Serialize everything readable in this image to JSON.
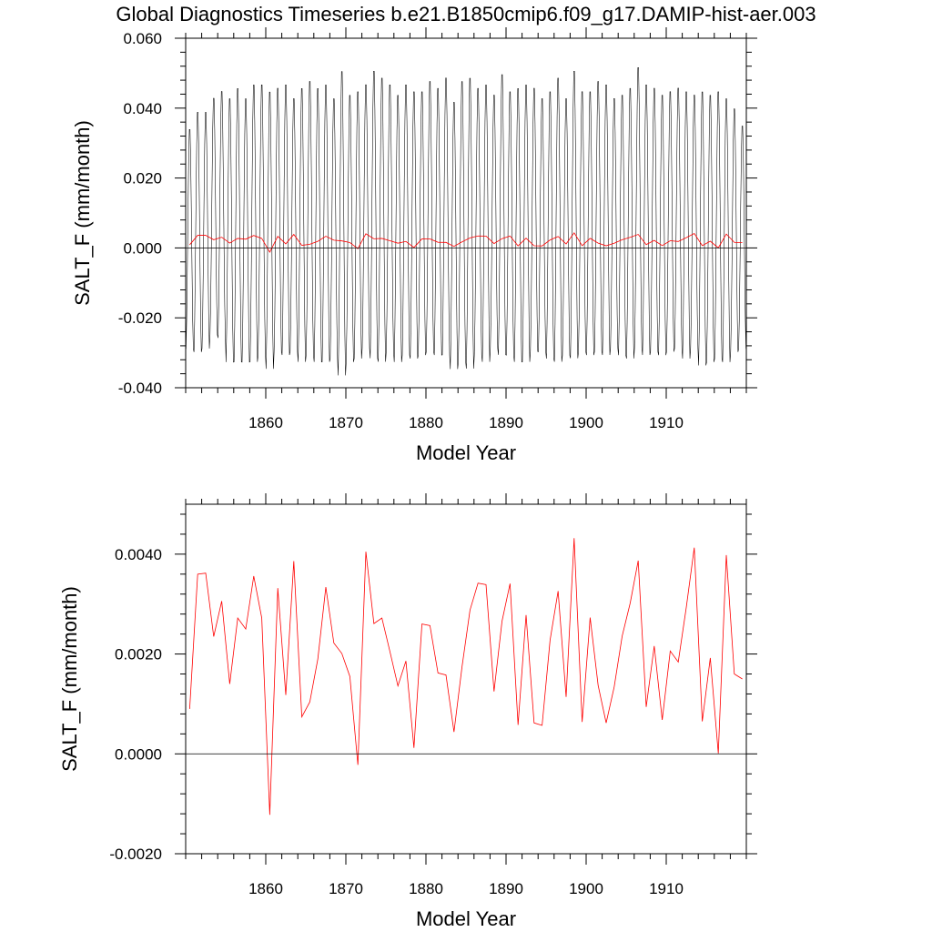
{
  "figure": {
    "title": "Global Diagnostics Timeseries b.e21.B1850cmip6.f09_g17.DAMIP-hist-aer.003"
  },
  "colors": {
    "monthly_series": "#000000",
    "annual_series": "#ff0000",
    "zero_line": "#000000",
    "background": "#ffffff"
  },
  "chart_data": [
    {
      "type": "line",
      "title": "Global Diagnostics Timeseries b.e21.B1850cmip6.f09_g17.DAMIP-hist-aer.003",
      "xlabel": "Model Year",
      "ylabel": "SALT_F (mm/month)",
      "xlim": [
        1850,
        1920
      ],
      "ylim": [
        -0.04,
        0.06
      ],
      "xticks": [
        1860,
        1870,
        1880,
        1890,
        1900,
        1910
      ],
      "xtick_labels": [
        "1860",
        "1870",
        "1880",
        "1890",
        "1900",
        "1910"
      ],
      "yticks": [
        -0.04,
        -0.02,
        0.0,
        0.02,
        0.04,
        0.06
      ],
      "ytick_labels": [
        "-0.040",
        "-0.020",
        "0.000",
        "0.020",
        "0.040",
        "0.060"
      ],
      "zero_line": true,
      "grid": false,
      "series": [
        {
          "color": "#000000",
          "resolution": "monthly",
          "annual_max": [
            0.035,
            0.04,
            0.04,
            0.044,
            0.046,
            0.044,
            0.047,
            0.044,
            0.048,
            0.048,
            0.046,
            0.047,
            0.048,
            0.044,
            0.047,
            0.049,
            0.047,
            0.048,
            0.044,
            0.052,
            0.045,
            0.046,
            0.048,
            0.052,
            0.05,
            0.048,
            0.045,
            0.048,
            0.046,
            0.046,
            0.049,
            0.047,
            0.05,
            0.043,
            0.049,
            0.05,
            0.047,
            0.048,
            0.045,
            0.051,
            0.046,
            0.047,
            0.048,
            0.047,
            0.044,
            0.046,
            0.05,
            0.044,
            0.052,
            0.046,
            0.046,
            0.049,
            0.048,
            0.044,
            0.045,
            0.047,
            0.053,
            0.048,
            0.047,
            0.045,
            0.046,
            0.047,
            0.046,
            0.045,
            0.046,
            0.045,
            0.046,
            0.044,
            0.041,
            0.036
          ],
          "annual_min": [
            -0.03,
            -0.031,
            -0.03,
            -0.026,
            -0.027,
            -0.034,
            -0.034,
            -0.034,
            -0.034,
            -0.032,
            -0.036,
            -0.031,
            -0.032,
            -0.031,
            -0.034,
            -0.032,
            -0.034,
            -0.034,
            -0.033,
            -0.038,
            -0.034,
            -0.033,
            -0.03,
            -0.033,
            -0.034,
            -0.031,
            -0.034,
            -0.032,
            -0.033,
            -0.032,
            -0.031,
            -0.032,
            -0.032,
            -0.036,
            -0.034,
            -0.036,
            -0.032,
            -0.034,
            -0.03,
            -0.032,
            -0.032,
            -0.034,
            -0.034,
            -0.031,
            -0.031,
            -0.033,
            -0.034,
            -0.032,
            -0.033,
            -0.031,
            -0.032,
            -0.031,
            -0.032,
            -0.03,
            -0.032,
            -0.033,
            -0.03,
            -0.032,
            -0.031,
            -0.032,
            -0.031,
            -0.03,
            -0.033,
            -0.03,
            -0.035,
            -0.034,
            -0.033,
            -0.034,
            -0.031,
            -0.03
          ]
        },
        {
          "color": "#ff0000",
          "resolution": "annual",
          "x": [
            1850.5,
            1851.5,
            1852.5,
            1853.5,
            1854.5,
            1855.5,
            1856.5,
            1857.5,
            1858.5,
            1859.5,
            1860.5,
            1861.5,
            1862.5,
            1863.5,
            1864.5,
            1865.5,
            1866.5,
            1867.5,
            1868.5,
            1869.5,
            1870.5,
            1871.5,
            1872.5,
            1873.5,
            1874.5,
            1875.5,
            1876.5,
            1877.5,
            1878.5,
            1879.5,
            1880.5,
            1881.5,
            1882.5,
            1883.5,
            1884.5,
            1885.5,
            1886.5,
            1887.5,
            1888.5,
            1889.5,
            1890.5,
            1891.5,
            1892.5,
            1893.5,
            1894.5,
            1895.5,
            1896.5,
            1897.5,
            1898.5,
            1899.5,
            1900.5,
            1901.5,
            1902.5,
            1903.5,
            1904.5,
            1905.5,
            1906.5,
            1907.5,
            1908.5,
            1909.5,
            1910.5,
            1911.5,
            1912.5,
            1913.5,
            1914.5,
            1915.5,
            1916.5,
            1917.5,
            1918.5,
            1919.5
          ],
          "values": [
            0.0009,
            0.0036,
            0.00362,
            0.00235,
            0.00306,
            0.0014,
            0.00272,
            0.0025,
            0.00356,
            0.00272,
            -0.00122,
            0.00332,
            0.00118,
            0.00386,
            0.00074,
            0.00104,
            0.0019,
            0.00334,
            0.00222,
            0.00201,
            0.00155,
            -0.00022,
            0.00405,
            0.00261,
            0.00272,
            0.00205,
            0.00136,
            0.00186,
            0.00012,
            0.0026,
            0.00257,
            0.00162,
            0.00158,
            0.00044,
            0.00174,
            0.00288,
            0.00342,
            0.00339,
            0.00125,
            0.00266,
            0.00341,
            0.00058,
            0.00278,
            0.00062,
            0.00057,
            0.00228,
            0.00326,
            0.00114,
            0.00432,
            0.00064,
            0.00273,
            0.00137,
            0.00062,
            0.00134,
            0.00236,
            0.00302,
            0.00387,
            0.00094,
            0.00216,
            0.00068,
            0.00206,
            0.00184,
            0.00293,
            0.00413,
            0.00065,
            0.00192,
            1e-05,
            0.00398,
            0.0016,
            0.0015
          ]
        }
      ]
    },
    {
      "type": "line",
      "xlabel": "Model Year",
      "ylabel": "SALT_F (mm/month)",
      "xlim": [
        1850,
        1920
      ],
      "ylim": [
        -0.002,
        0.005
      ],
      "xticks": [
        1860,
        1870,
        1880,
        1890,
        1900,
        1910
      ],
      "xtick_labels": [
        "1860",
        "1870",
        "1880",
        "1890",
        "1900",
        "1910"
      ],
      "yticks": [
        -0.002,
        0.0,
        0.002,
        0.004
      ],
      "ytick_labels": [
        "-0.0020",
        "0.0000",
        "0.0020",
        "0.0040"
      ],
      "zero_line": true,
      "grid": false,
      "series": [
        {
          "color": "#ff0000",
          "resolution": "annual",
          "x": [
            1850.5,
            1851.5,
            1852.5,
            1853.5,
            1854.5,
            1855.5,
            1856.5,
            1857.5,
            1858.5,
            1859.5,
            1860.5,
            1861.5,
            1862.5,
            1863.5,
            1864.5,
            1865.5,
            1866.5,
            1867.5,
            1868.5,
            1869.5,
            1870.5,
            1871.5,
            1872.5,
            1873.5,
            1874.5,
            1875.5,
            1876.5,
            1877.5,
            1878.5,
            1879.5,
            1880.5,
            1881.5,
            1882.5,
            1883.5,
            1884.5,
            1885.5,
            1886.5,
            1887.5,
            1888.5,
            1889.5,
            1890.5,
            1891.5,
            1892.5,
            1893.5,
            1894.5,
            1895.5,
            1896.5,
            1897.5,
            1898.5,
            1899.5,
            1900.5,
            1901.5,
            1902.5,
            1903.5,
            1904.5,
            1905.5,
            1906.5,
            1907.5,
            1908.5,
            1909.5,
            1910.5,
            1911.5,
            1912.5,
            1913.5,
            1914.5,
            1915.5,
            1916.5,
            1917.5,
            1918.5,
            1919.5
          ],
          "values": [
            0.0009,
            0.0036,
            0.00362,
            0.00235,
            0.00306,
            0.0014,
            0.00272,
            0.0025,
            0.00356,
            0.00272,
            -0.00122,
            0.00332,
            0.00118,
            0.00386,
            0.00074,
            0.00104,
            0.0019,
            0.00334,
            0.00222,
            0.00201,
            0.00155,
            -0.00022,
            0.00405,
            0.00261,
            0.00272,
            0.00205,
            0.00136,
            0.00186,
            0.00012,
            0.0026,
            0.00257,
            0.00162,
            0.00158,
            0.00044,
            0.00174,
            0.00288,
            0.00342,
            0.00339,
            0.00125,
            0.00266,
            0.00341,
            0.00058,
            0.00278,
            0.00062,
            0.00057,
            0.00228,
            0.00326,
            0.00114,
            0.00432,
            0.00064,
            0.00273,
            0.00137,
            0.00062,
            0.00134,
            0.00236,
            0.00302,
            0.00387,
            0.00094,
            0.00216,
            0.00068,
            0.00206,
            0.00184,
            0.00293,
            0.00413,
            0.00065,
            0.00192,
            1e-05,
            0.00398,
            0.0016,
            0.0015
          ]
        }
      ]
    }
  ]
}
